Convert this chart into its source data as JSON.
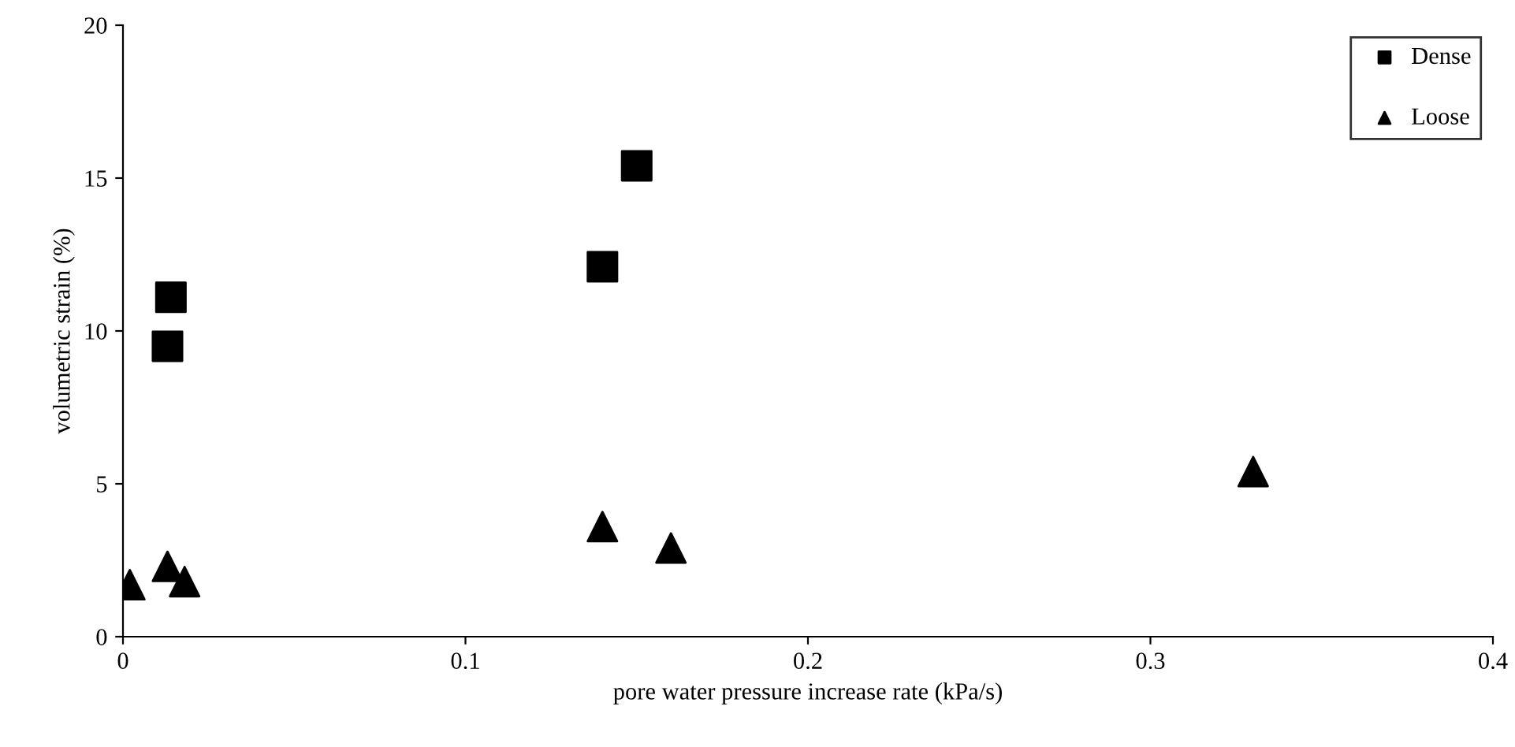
{
  "chart_data": {
    "type": "scatter",
    "xlabel": "pore water pressure increase rate (kPa/s)",
    "ylabel": "volumetric strain (%)",
    "xlim": [
      0,
      0.4
    ],
    "xticks": [
      {
        "value": 0,
        "label": "0"
      },
      0.1,
      0.2,
      0.3,
      0.4
    ],
    "ylim": [
      0,
      20
    ],
    "yticks": [
      0,
      5,
      10,
      15,
      20
    ],
    "grid": false,
    "legend": "top right",
    "series": [
      {
        "name": "Dense",
        "color": "#000000",
        "marker": "square",
        "x": [
          0.014,
          0.013,
          0.14,
          0.15
        ],
        "values": [
          11.1,
          9.5,
          12.1,
          15.4
        ]
      },
      {
        "name": "Loose",
        "color": "#000000",
        "marker": "triangle",
        "x": [
          0.002,
          0.013,
          0.018,
          0.14,
          0.16,
          0.33
        ],
        "values": [
          1.7,
          2.3,
          1.8,
          3.6,
          2.9,
          5.4
        ]
      }
    ]
  }
}
